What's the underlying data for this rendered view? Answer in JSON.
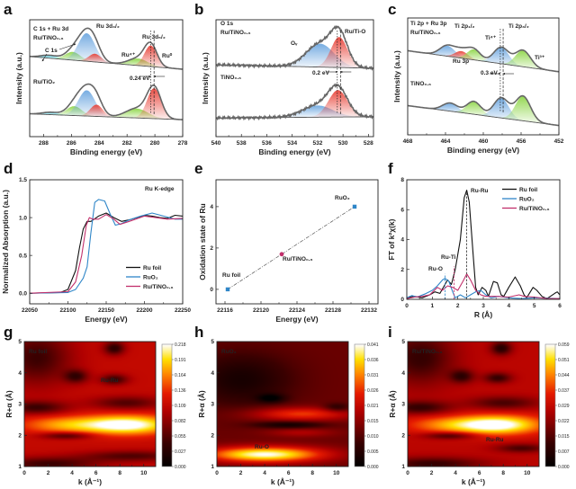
{
  "chart_data": [
    {
      "panel": "a",
      "type": "line",
      "xlabel": "Binding energy (eV)",
      "ylabel": "Intensity (a.u.)",
      "xlim": [
        289,
        278
      ],
      "xticks": [
        "288",
        "286",
        "284",
        "282",
        "280",
        "278"
      ],
      "annotations": [
        "C 1s + Ru 3d",
        "Ru/TiNO₀.₆",
        "C 1s",
        "Ru 3d₃/₂",
        "Ru 3d₅/₂",
        "Ru⁴⁺",
        "Ru⁰",
        "Ru/TiO₂",
        "0.24 eV"
      ],
      "marker_lines": [
        280.3,
        280.06
      ],
      "series": [
        {
          "name": "Ru/TiNO₀.₆",
          "components": [
            {
              "center": 287.6,
              "height": 0.25,
              "width": 0.6,
              "color": "#5fd6e6"
            },
            {
              "center": 285.9,
              "height": 0.7,
              "width": 0.55,
              "color": "#8fd64a"
            },
            {
              "center": 284.9,
              "height": 2.4,
              "width": 0.6,
              "color": "#6fa8e0"
            },
            {
              "center": 284.3,
              "height": 0.7,
              "width": 0.45,
              "color": "#e8443a"
            },
            {
              "center": 281.2,
              "height": 0.6,
              "width": 0.7,
              "color": "#8fd64a"
            },
            {
              "center": 280.3,
              "height": 1.8,
              "width": 0.45,
              "color": "#e8443a"
            }
          ]
        },
        {
          "name": "Ru/TiO₂",
          "components": [
            {
              "center": 287.5,
              "height": 0.2,
              "width": 0.6,
              "color": "#5fd6e6"
            },
            {
              "center": 285.8,
              "height": 0.8,
              "width": 0.55,
              "color": "#8fd64a"
            },
            {
              "center": 284.9,
              "height": 2.2,
              "width": 0.6,
              "color": "#6fa8e0"
            },
            {
              "center": 284.2,
              "height": 1.0,
              "width": 0.45,
              "color": "#e8443a"
            },
            {
              "center": 281.3,
              "height": 0.8,
              "width": 0.8,
              "color": "#8fd64a"
            },
            {
              "center": 280.06,
              "height": 2.6,
              "width": 0.5,
              "color": "#e8443a"
            }
          ]
        }
      ]
    },
    {
      "panel": "b",
      "type": "line",
      "xlabel": "Binding energy (eV)",
      "ylabel": "Intensity (a.u.)",
      "xlim": [
        540,
        527.6
      ],
      "xticks": [
        "540",
        "538",
        "536",
        "534",
        "532",
        "530",
        "528"
      ],
      "annotations": [
        "O 1s",
        "Ru/TiNO₀.₆",
        "Oᵥ",
        "Ru/Ti-O",
        "TiNO₀.₆",
        "0.2 eV"
      ],
      "marker_lines": [
        530.45,
        530.2
      ],
      "series": [
        {
          "name": "Ru/TiNO₀.₆",
          "components": [
            {
              "center": 531.8,
              "height": 2.0,
              "width": 1.1,
              "color": "#6fa8e0"
            },
            {
              "center": 530.3,
              "height": 2.6,
              "width": 0.65,
              "color": "#e8443a"
            }
          ]
        },
        {
          "name": "TiNO₀.₆",
          "components": [
            {
              "center": 532.0,
              "height": 1.0,
              "width": 1.2,
              "color": "#6fa8e0"
            },
            {
              "center": 530.4,
              "height": 2.3,
              "width": 0.75,
              "color": "#e8443a"
            }
          ]
        }
      ]
    },
    {
      "panel": "c",
      "type": "line",
      "xlabel": "Binding energy (eV)",
      "ylabel": "Intensity (a.u.)",
      "xlim": [
        468,
        452
      ],
      "xticks": [
        "468",
        "464",
        "460",
        "456",
        "452"
      ],
      "annotations": [
        "Ti 2p + Ru 3p",
        "Ru/TiNO₀.₆",
        "Ti 2p₁/₂",
        "Ti 2p₃/₂",
        "Ti⁴⁺",
        "Ti³⁺",
        "Ru 3p",
        "TiNO₀.₆",
        "0.3 eV"
      ],
      "marker_lines": [
        458.2,
        457.9
      ],
      "series": [
        {
          "name": "Ru/TiNO₀.₆",
          "components": [
            {
              "center": 463.8,
              "height": 0.9,
              "width": 0.8,
              "color": "#6fa8e0"
            },
            {
              "center": 462.3,
              "height": 0.6,
              "width": 0.7,
              "color": "#e8443a"
            },
            {
              "center": 461.0,
              "height": 0.9,
              "width": 0.7,
              "color": "#8fd64a"
            },
            {
              "center": 458.1,
              "height": 1.4,
              "width": 0.8,
              "color": "#6fa8e0"
            },
            {
              "center": 455.8,
              "height": 1.4,
              "width": 0.8,
              "color": "#8fd64a"
            }
          ]
        },
        {
          "name": "TiNO₀.₆",
          "components": [
            {
              "center": 463.5,
              "height": 0.7,
              "width": 0.8,
              "color": "#6fa8e0"
            },
            {
              "center": 461.0,
              "height": 1.1,
              "width": 0.75,
              "color": "#8fd64a"
            },
            {
              "center": 458.1,
              "height": 1.7,
              "width": 0.8,
              "color": "#6fa8e0"
            },
            {
              "center": 455.8,
              "height": 2.1,
              "width": 0.8,
              "color": "#8fd64a"
            }
          ]
        }
      ]
    },
    {
      "panel": "d",
      "type": "line",
      "xlabel": "Energy (eV)",
      "ylabel": "Normalized Absorption (a.u.)",
      "xlim": [
        22050,
        22250
      ],
      "ylim": [
        -0.14,
        1.5
      ],
      "xticks": [
        "22050",
        "22100",
        "22150",
        "22200",
        "22250"
      ],
      "yticks": [
        "0.0",
        "0.5",
        "1.0",
        "1.5"
      ],
      "annotations": [
        "Ru K-edge"
      ],
      "legend": "bottom-right",
      "series": [
        {
          "name": "Ru foil",
          "color": "#111111",
          "x": [
            22050,
            22090,
            22100,
            22110,
            22115,
            22120,
            22125,
            22130,
            22140,
            22150,
            22160,
            22170,
            22180,
            22190,
            22200,
            22210,
            22220,
            22230,
            22240,
            22250
          ],
          "y": [
            0,
            0.01,
            0.05,
            0.3,
            0.6,
            0.85,
            0.95,
            0.95,
            1.02,
            1.06,
            1.0,
            0.95,
            0.97,
            1.0,
            1.03,
            1.02,
            1.0,
            0.99,
            1.03,
            1.02
          ]
        },
        {
          "name": "RuO₂",
          "color": "#2f86c8",
          "x": [
            22050,
            22100,
            22110,
            22120,
            22125,
            22130,
            22135,
            22140,
            22148,
            22155,
            22162,
            22170,
            22180,
            22195,
            22210,
            22225,
            22240,
            22250
          ],
          "y": [
            0,
            0.01,
            0.05,
            0.2,
            0.35,
            0.8,
            1.2,
            1.24,
            1.22,
            1.05,
            0.9,
            0.92,
            0.97,
            1.02,
            1.06,
            1.02,
            0.98,
            0.98
          ]
        },
        {
          "name": "Ru/TiNO₀.₆",
          "color": "#c2306c",
          "x": [
            22050,
            22100,
            22110,
            22118,
            22124,
            22128,
            22132,
            22140,
            22150,
            22160,
            22168,
            22180,
            22200,
            22215,
            22230,
            22250
          ],
          "y": [
            0,
            0.02,
            0.15,
            0.5,
            0.9,
            1.0,
            0.98,
            0.98,
            1.04,
            0.98,
            0.91,
            0.95,
            1.02,
            1.0,
            0.98,
            0.99
          ]
        }
      ]
    },
    {
      "panel": "e",
      "type": "scatter",
      "xlabel": "Energy (eV)",
      "ylabel": "Oxidation state of Ru",
      "xlim": [
        22115,
        22133
      ],
      "ylim": [
        -0.7,
        5.3
      ],
      "xticks": [
        "22116",
        "22120",
        "22124",
        "22128",
        "22132"
      ],
      "yticks": [
        "0",
        "2",
        "4"
      ],
      "points": [
        {
          "label": "Ru foil",
          "x": 22116.3,
          "y": 0,
          "color": "#2f86c8",
          "marker": "square"
        },
        {
          "label": "Ru/TiNO₀.₆",
          "x": 22122.3,
          "y": 1.7,
          "color": "#c2306c",
          "marker": "circle"
        },
        {
          "label": "RuO₂",
          "x": 22130.4,
          "y": 4.0,
          "color": "#2f86c8",
          "marker": "square"
        }
      ],
      "fit_line": "linear, dash-dot"
    },
    {
      "panel": "f",
      "type": "line",
      "xlabel": "R (Å)",
      "ylabel": "FT of k²χ(k)",
      "xlim": [
        0,
        6
      ],
      "ylim": [
        0,
        8
      ],
      "xticks": [
        "0",
        "1",
        "2",
        "3",
        "4",
        "5",
        "6"
      ],
      "yticks": [
        "0",
        "2",
        "4",
        "6",
        "8"
      ],
      "annotations": [
        "Ru-Ru",
        "Ru-Ti",
        "Ru-O"
      ],
      "marker_lines": [
        {
          "x": 2.35,
          "top": 7.2,
          "color": "#333333"
        },
        {
          "x": 1.85,
          "top": 2.2,
          "color": "#c2306c"
        },
        {
          "x": 1.5,
          "top": 1.7,
          "color": "#2f86c8"
        }
      ],
      "legend": "top-right",
      "series": [
        {
          "name": "Ru foil",
          "color": "#111111",
          "x": [
            0,
            0.3,
            0.6,
            0.9,
            1.1,
            1.3,
            1.5,
            1.6,
            1.75,
            1.9,
            2.1,
            2.25,
            2.35,
            2.45,
            2.6,
            2.7,
            2.8,
            2.95,
            3.1,
            3.2,
            3.4,
            3.55,
            3.7,
            3.8,
            4.0,
            4.25,
            4.45,
            4.6,
            4.7,
            4.95,
            5.1,
            5.3,
            5.5,
            5.8,
            5.9,
            6.0
          ],
          "y": [
            0.1,
            0.2,
            0.1,
            0.3,
            0.5,
            0.4,
            1.0,
            1.3,
            1.0,
            2.0,
            4.0,
            6.8,
            7.3,
            6.5,
            3.0,
            0.8,
            0.3,
            0.8,
            0.6,
            0.2,
            1.2,
            1.1,
            0.3,
            0.2,
            0.8,
            1.5,
            0.9,
            0.3,
            0.1,
            0.8,
            0.6,
            0.2,
            0.05,
            0.4,
            0.5,
            0.3
          ]
        },
        {
          "name": "RuO₂",
          "color": "#2f86c8",
          "x": [
            0,
            0.2,
            0.4,
            0.7,
            1.0,
            1.2,
            1.4,
            1.5,
            1.65,
            1.8,
            1.9,
            2.1,
            2.3,
            2.5,
            2.7,
            2.9,
            3.1,
            3.3,
            3.6,
            4.0,
            4.5,
            5.0,
            6.0
          ],
          "y": [
            0.1,
            0.25,
            0.15,
            0.35,
            0.6,
            0.9,
            1.3,
            1.4,
            1.2,
            0.5,
            0.1,
            0.3,
            0.1,
            0.3,
            0.5,
            0.6,
            0.3,
            0.1,
            0.2,
            0.1,
            0.05,
            0.1,
            0.05
          ]
        },
        {
          "name": "Ru/TiNO₀.₆",
          "color": "#c2306c",
          "x": [
            0,
            0.3,
            0.6,
            0.9,
            1.2,
            1.4,
            1.6,
            1.8,
            2.0,
            2.2,
            2.35,
            2.5,
            2.7,
            2.9,
            3.1,
            3.5,
            4.0,
            4.4,
            4.6,
            5.0,
            5.5,
            6.0
          ],
          "y": [
            0.05,
            0.15,
            0.2,
            0.3,
            0.8,
            0.6,
            0.9,
            0.8,
            0.6,
            1.2,
            1.7,
            1.3,
            0.6,
            0.3,
            0.2,
            0.2,
            0.15,
            0.3,
            0.2,
            0.15,
            0.05,
            0.05
          ]
        }
      ]
    },
    {
      "panel": "g",
      "type": "heatmap",
      "xlabel": "k (Å⁻¹)",
      "ylabel": "R+α (Å)",
      "xlim": [
        0,
        11
      ],
      "ylim": [
        1,
        5
      ],
      "xticks": [
        "0",
        "2",
        "4",
        "6",
        "8",
        "10"
      ],
      "yticks": [
        "1",
        "2",
        "3",
        "4",
        "5"
      ],
      "sample": "Ru foil",
      "feature_label": "Ru-Ru",
      "colorbar_ticks": [
        "0.218",
        "0.191",
        "0.164",
        "0.136",
        "0.109",
        "0.082",
        "0.055",
        "0.027",
        "0.000"
      ],
      "base": 0.5,
      "features": [
        {
          "k": 8.5,
          "R": 2.35,
          "amp": 0.55,
          "sk": 2.8,
          "sR": 0.22
        },
        {
          "k": 3,
          "R": 2.35,
          "amp": 0.25,
          "sk": 2.5,
          "sR": 0.2
        },
        {
          "k": 1,
          "R": 2.9,
          "amp": -0.3,
          "sk": 1.8,
          "sR": 0.15
        },
        {
          "k": 4.3,
          "R": 3.9,
          "amp": -0.3,
          "sk": 0.7,
          "sR": 0.15
        },
        {
          "k": 7.5,
          "R": 3.8,
          "amp": -0.3,
          "sk": 0.8,
          "sR": 0.12
        },
        {
          "k": 7.5,
          "R": 4.8,
          "amp": -0.35,
          "sk": 0.6,
          "sR": 0.15
        },
        {
          "k": 8.5,
          "R": 3.05,
          "amp": -0.25,
          "sk": 2,
          "sR": 0.15
        },
        {
          "k": 3.5,
          "R": 2.0,
          "amp": -0.3,
          "sk": 1.5,
          "sR": 0.08
        },
        {
          "k": 9,
          "R": 1.35,
          "amp": -0.25,
          "sk": 3,
          "sR": 0.12
        },
        {
          "k": 1,
          "R": 4.5,
          "amp": -0.3,
          "sk": 2,
          "sR": 0.6
        },
        {
          "k": 2,
          "R": 1.1,
          "amp": -0.3,
          "sk": 3,
          "sR": 0.15
        }
      ]
    },
    {
      "panel": "h",
      "type": "heatmap",
      "xlabel": "k (Å⁻¹)",
      "ylabel": "R+α (Å)",
      "xlim": [
        0,
        11
      ],
      "ylim": [
        1,
        5
      ],
      "xticks": [
        "0",
        "2",
        "4",
        "6",
        "8",
        "10"
      ],
      "yticks": [
        "1",
        "2",
        "3",
        "4",
        "5"
      ],
      "sample": "RuO₂",
      "feature_label": "Ru-O",
      "colorbar_ticks": [
        "0.041",
        "0.036",
        "0.031",
        "0.026",
        "0.021",
        "0.015",
        "0.010",
        "0.005",
        "0.000"
      ],
      "base": 0.3,
      "features": [
        {
          "k": 4,
          "R": 1.4,
          "amp": 0.7,
          "sk": 3.5,
          "sR": 0.18
        },
        {
          "k": 7,
          "R": 2.7,
          "amp": 0.35,
          "sk": 3,
          "sR": 0.15
        },
        {
          "k": 7,
          "R": 2.1,
          "amp": 0.15,
          "sk": 2,
          "sR": 0.1
        },
        {
          "k": 2,
          "R": 3.8,
          "amp": -0.22,
          "sk": 3,
          "sR": 0.6
        },
        {
          "k": 4.5,
          "R": 3.2,
          "amp": -0.25,
          "sk": 0.8,
          "sR": 0.1
        },
        {
          "k": 10,
          "R": 2.9,
          "amp": -0.2,
          "sk": 0.8,
          "sR": 0.1
        },
        {
          "k": 6,
          "R": 2.35,
          "amp": -0.25,
          "sk": 2,
          "sR": 0.08
        }
      ]
    },
    {
      "panel": "i",
      "type": "heatmap",
      "xlabel": "k (Å⁻¹)",
      "ylabel": "R+α (Å)",
      "xlim": [
        0,
        11
      ],
      "ylim": [
        1,
        5
      ],
      "xticks": [
        "0",
        "2",
        "4",
        "6",
        "8",
        "10"
      ],
      "yticks": [
        "1",
        "2",
        "3",
        "4",
        "5"
      ],
      "sample": "Ru/TiNO₀.₆",
      "feature_label": "Ru-Ru",
      "colorbar_ticks": [
        "0.059",
        "0.051",
        "0.044",
        "0.037",
        "0.029",
        "0.022",
        "0.015",
        "0.007",
        "0.000"
      ],
      "base": 0.48,
      "features": [
        {
          "k": 7.5,
          "R": 2.35,
          "amp": 0.56,
          "sk": 2.6,
          "sR": 0.22
        },
        {
          "k": 3,
          "R": 2.35,
          "amp": 0.22,
          "sk": 2.5,
          "sR": 0.2
        },
        {
          "k": 1,
          "R": 2.9,
          "amp": -0.3,
          "sk": 1.8,
          "sR": 0.15
        },
        {
          "k": 4.5,
          "R": 3.9,
          "amp": -0.3,
          "sk": 0.7,
          "sR": 0.15
        },
        {
          "k": 7.5,
          "R": 3.85,
          "amp": -0.3,
          "sk": 0.8,
          "sR": 0.12
        },
        {
          "k": 7.8,
          "R": 4.8,
          "amp": -0.35,
          "sk": 0.6,
          "sR": 0.15
        },
        {
          "k": 8,
          "R": 3.05,
          "amp": -0.25,
          "sk": 2,
          "sR": 0.15
        },
        {
          "k": 3.5,
          "R": 2.0,
          "amp": -0.3,
          "sk": 1.5,
          "sR": 0.08
        },
        {
          "k": 9.5,
          "R": 1.6,
          "amp": -0.25,
          "sk": 1.5,
          "sR": 0.1
        },
        {
          "k": 1,
          "R": 4.5,
          "amp": -0.3,
          "sk": 2,
          "sR": 0.6
        },
        {
          "k": 2,
          "R": 1.1,
          "amp": -0.3,
          "sk": 3,
          "sR": 0.15
        }
      ]
    }
  ]
}
